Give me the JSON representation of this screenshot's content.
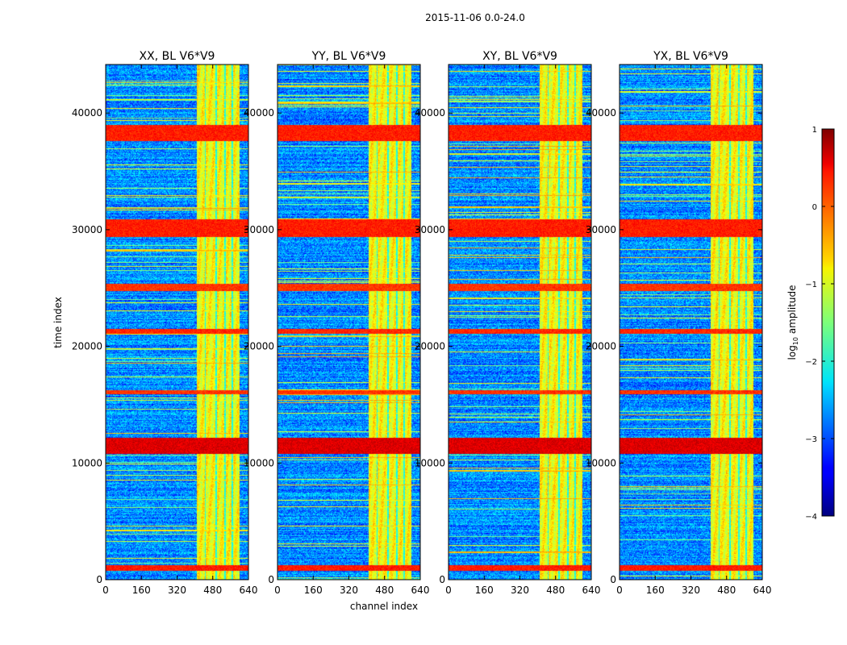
{
  "chart_data": {
    "type": "heatmap",
    "suptitle": "2015-11-06 0.0-24.0",
    "panels": [
      {
        "title": "XX, BL V6*V9",
        "seed": 11
      },
      {
        "title": "YY, BL V6*V9",
        "seed": 23
      },
      {
        "title": "XY, BL V6*V9",
        "seed": 37
      },
      {
        "title": "YX, BL V6*V9",
        "seed": 53
      }
    ],
    "xlabel": "channel index",
    "ylabel": "time index",
    "xlim": [
      0,
      640
    ],
    "ylim": [
      0,
      44160
    ],
    "xticks": [
      0,
      160,
      320,
      480,
      640
    ],
    "yticks": [
      0,
      10000,
      20000,
      30000,
      40000
    ],
    "colorbar": {
      "label": "log10 amplitude",
      "label_base": "log",
      "label_sub": "10",
      "label_rest": " amplitude",
      "range": [
        -4,
        1
      ],
      "ticks": [
        1,
        0,
        -1,
        -2,
        -3,
        -4
      ],
      "tick_labels": [
        "1",
        "0",
        "−1",
        "−2",
        "−3",
        "−4"
      ],
      "colormap": "jet"
    },
    "structure": {
      "rfi_channel_band": [
        405,
        600
      ],
      "rfi_channel_gaps": [
        [
          442,
          448
        ],
        [
          490,
          496
        ],
        [
          530,
          536
        ],
        [
          563,
          570
        ]
      ],
      "strong_time_bands": [
        [
          10800,
          12200,
          0.95
        ],
        [
          29400,
          30900,
          0.7
        ],
        [
          37600,
          39000,
          0.7
        ],
        [
          24800,
          25400,
          0.6
        ],
        [
          21100,
          21500,
          0.65
        ],
        [
          15900,
          16300,
          0.6
        ],
        [
          800,
          1300,
          0.7
        ]
      ],
      "background_level": -2.7,
      "band_level": -0.9
    }
  }
}
